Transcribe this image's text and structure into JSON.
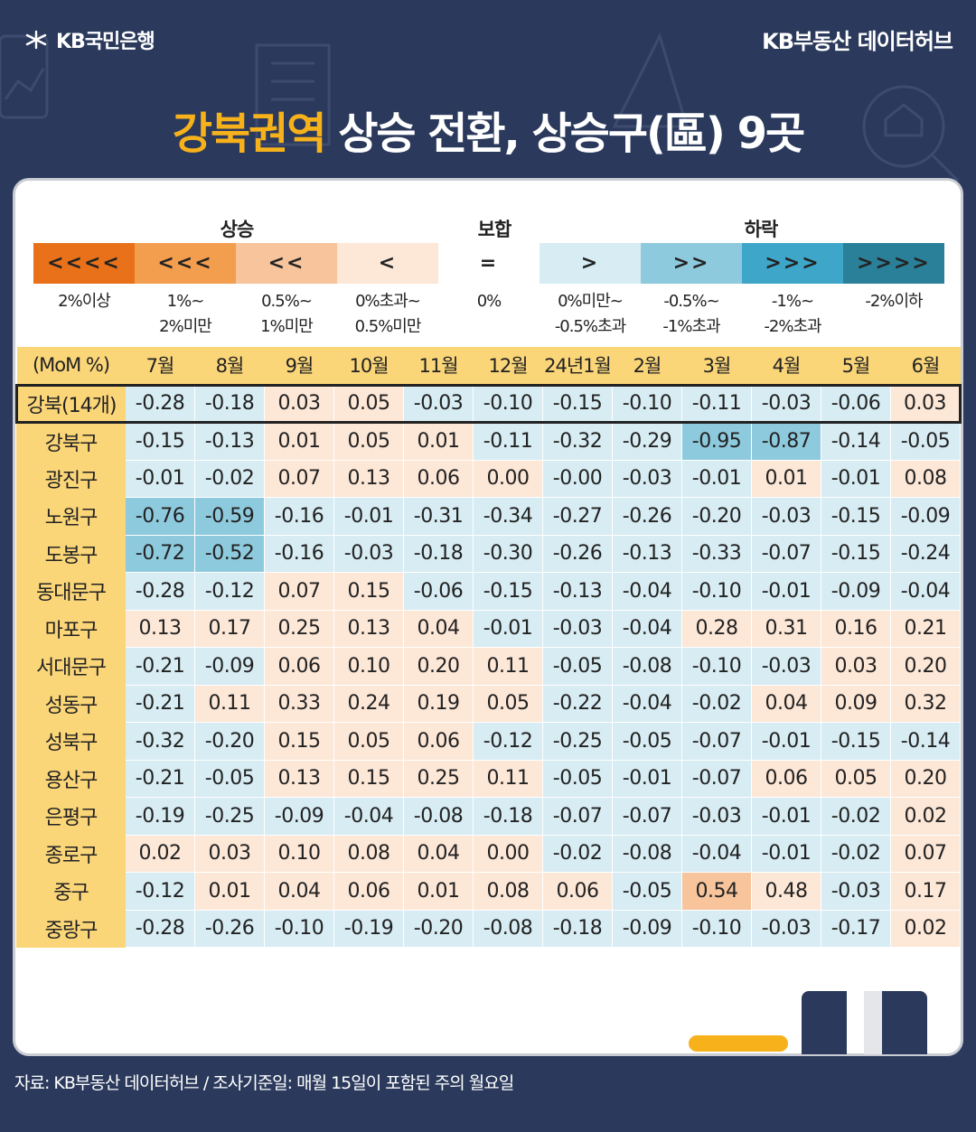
{
  "header": {
    "bank_logo": "KB국민은행",
    "brand": "KB부동산 데이터허브"
  },
  "title": {
    "highlight": "강북권역",
    "rest": " 상승 전환, 상승구(區) 9곳"
  },
  "legend": {
    "groups": [
      {
        "label": "상승"
      },
      {
        "label": "보합"
      },
      {
        "label": "하락"
      }
    ],
    "bins": [
      {
        "symbol": "<<<<",
        "label_line1": "2%이상",
        "label_line2": "",
        "color": "#e8711a"
      },
      {
        "symbol": "<<<",
        "label_line1": "1%~",
        "label_line2": "2%미만",
        "color": "#f39d4e"
      },
      {
        "symbol": "<<",
        "label_line1": "0.5%~",
        "label_line2": "1%미만",
        "color": "#f7c49c"
      },
      {
        "symbol": "<",
        "label_line1": "0%초과~",
        "label_line2": "0.5%미만",
        "color": "#fde7d7"
      },
      {
        "symbol": "=",
        "label_line1": "0%",
        "label_line2": "",
        "color": "#ffffff"
      },
      {
        "symbol": ">",
        "label_line1": "0%미만~",
        "label_line2": "-0.5%초과",
        "color": "#d7ecf3"
      },
      {
        "symbol": ">>",
        "label_line1": "-0.5%~",
        "label_line2": "-1%초과",
        "color": "#8ecadd"
      },
      {
        "symbol": ">>>",
        "label_line1": "-1%~",
        "label_line2": "-2%초과",
        "color": "#3ea6c8"
      },
      {
        "symbol": ">>>>",
        "label_line1": "-2%이하",
        "label_line2": "",
        "color": "#2a7f99"
      }
    ]
  },
  "chart_data": {
    "type": "table",
    "corner_label": "(MoM %)",
    "columns": [
      "7월",
      "8월",
      "9월",
      "10월",
      "11월",
      "12월",
      "24년1월",
      "2월",
      "3월",
      "4월",
      "5월",
      "6월"
    ],
    "rows": [
      {
        "name": "강북(14개)",
        "summary": true,
        "values": [
          "-0.28",
          "-0.18",
          "0.03",
          "0.05",
          "-0.03",
          "-0.10",
          "-0.15",
          "-0.10",
          "-0.11",
          "-0.03",
          "-0.06",
          "0.03"
        ]
      },
      {
        "name": "강북구",
        "values": [
          "-0.15",
          "-0.13",
          "0.01",
          "0.05",
          "0.01",
          "-0.11",
          "-0.32",
          "-0.29",
          "-0.95",
          "-0.87",
          "-0.14",
          "-0.05"
        ]
      },
      {
        "name": "광진구",
        "values": [
          "-0.01",
          "-0.02",
          "0.07",
          "0.13",
          "0.06",
          "0.00",
          "-0.00",
          "-0.03",
          "-0.01",
          "0.01",
          "-0.01",
          "0.08"
        ]
      },
      {
        "name": "노원구",
        "values": [
          "-0.76",
          "-0.59",
          "-0.16",
          "-0.01",
          "-0.31",
          "-0.34",
          "-0.27",
          "-0.26",
          "-0.20",
          "-0.03",
          "-0.15",
          "-0.09"
        ]
      },
      {
        "name": "도봉구",
        "values": [
          "-0.72",
          "-0.52",
          "-0.16",
          "-0.03",
          "-0.18",
          "-0.30",
          "-0.26",
          "-0.13",
          "-0.33",
          "-0.07",
          "-0.15",
          "-0.24"
        ]
      },
      {
        "name": "동대문구",
        "values": [
          "-0.28",
          "-0.12",
          "0.07",
          "0.15",
          "-0.06",
          "-0.15",
          "-0.13",
          "-0.04",
          "-0.10",
          "-0.01",
          "-0.09",
          "-0.04"
        ]
      },
      {
        "name": "마포구",
        "values": [
          "0.13",
          "0.17",
          "0.25",
          "0.13",
          "0.04",
          "-0.01",
          "-0.03",
          "-0.04",
          "0.28",
          "0.31",
          "0.16",
          "0.21"
        ]
      },
      {
        "name": "서대문구",
        "values": [
          "-0.21",
          "-0.09",
          "0.06",
          "0.10",
          "0.20",
          "0.11",
          "-0.05",
          "-0.08",
          "-0.10",
          "-0.03",
          "0.03",
          "0.20"
        ]
      },
      {
        "name": "성동구",
        "values": [
          "-0.21",
          "0.11",
          "0.33",
          "0.24",
          "0.19",
          "0.05",
          "-0.22",
          "-0.04",
          "-0.02",
          "0.04",
          "0.09",
          "0.32"
        ]
      },
      {
        "name": "성북구",
        "values": [
          "-0.32",
          "-0.20",
          "0.15",
          "0.05",
          "0.06",
          "-0.12",
          "-0.25",
          "-0.05",
          "-0.07",
          "-0.01",
          "-0.15",
          "-0.14"
        ]
      },
      {
        "name": "용산구",
        "values": [
          "-0.21",
          "-0.05",
          "0.13",
          "0.15",
          "0.25",
          "0.11",
          "-0.05",
          "-0.01",
          "-0.07",
          "0.06",
          "0.05",
          "0.20"
        ]
      },
      {
        "name": "은평구",
        "values": [
          "-0.19",
          "-0.25",
          "-0.09",
          "-0.04",
          "-0.08",
          "-0.18",
          "-0.07",
          "-0.07",
          "-0.03",
          "-0.01",
          "-0.02",
          "0.02"
        ]
      },
      {
        "name": "종로구",
        "values": [
          "0.02",
          "0.03",
          "0.10",
          "0.08",
          "0.04",
          "0.00",
          "-0.02",
          "-0.08",
          "-0.04",
          "-0.01",
          "-0.02",
          "0.07"
        ]
      },
      {
        "name": "중구",
        "values": [
          "-0.12",
          "0.01",
          "0.04",
          "0.06",
          "0.01",
          "0.08",
          "0.06",
          "-0.05",
          "0.54",
          "0.48",
          "-0.03",
          "0.17"
        ]
      },
      {
        "name": "중랑구",
        "values": [
          "-0.28",
          "-0.26",
          "-0.10",
          "-0.19",
          "-0.20",
          "-0.08",
          "-0.18",
          "-0.09",
          "-0.10",
          "-0.03",
          "-0.17",
          "0.02"
        ]
      }
    ]
  },
  "footer": {
    "source": "자료: KB부동산 데이터허브 / 조사기준일: 매월 15일이 포함된 주의 월요일"
  }
}
